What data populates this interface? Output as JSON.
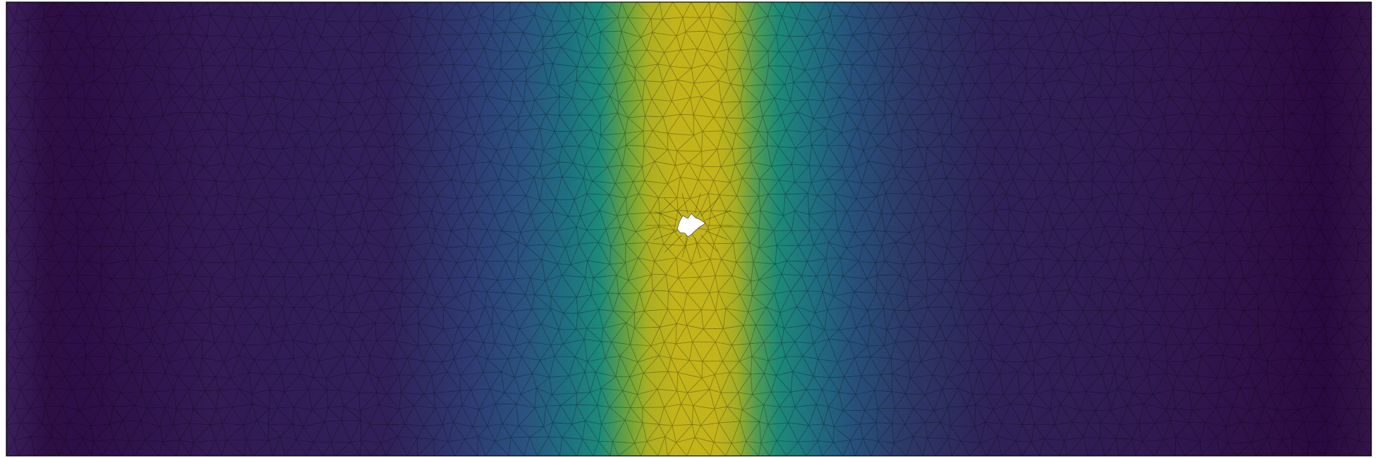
{
  "figure": {
    "description_type": "mesh-field-plot",
    "colormap": "viridis",
    "colormap_stops": [
      "#440154",
      "#3b528b",
      "#21918c",
      "#5ec962",
      "#fde725"
    ],
    "mesh_edge_color": "#000000",
    "background_color": "#ffffff",
    "hole_color": "#ffffff",
    "field_peak_level": 0.8
  }
}
